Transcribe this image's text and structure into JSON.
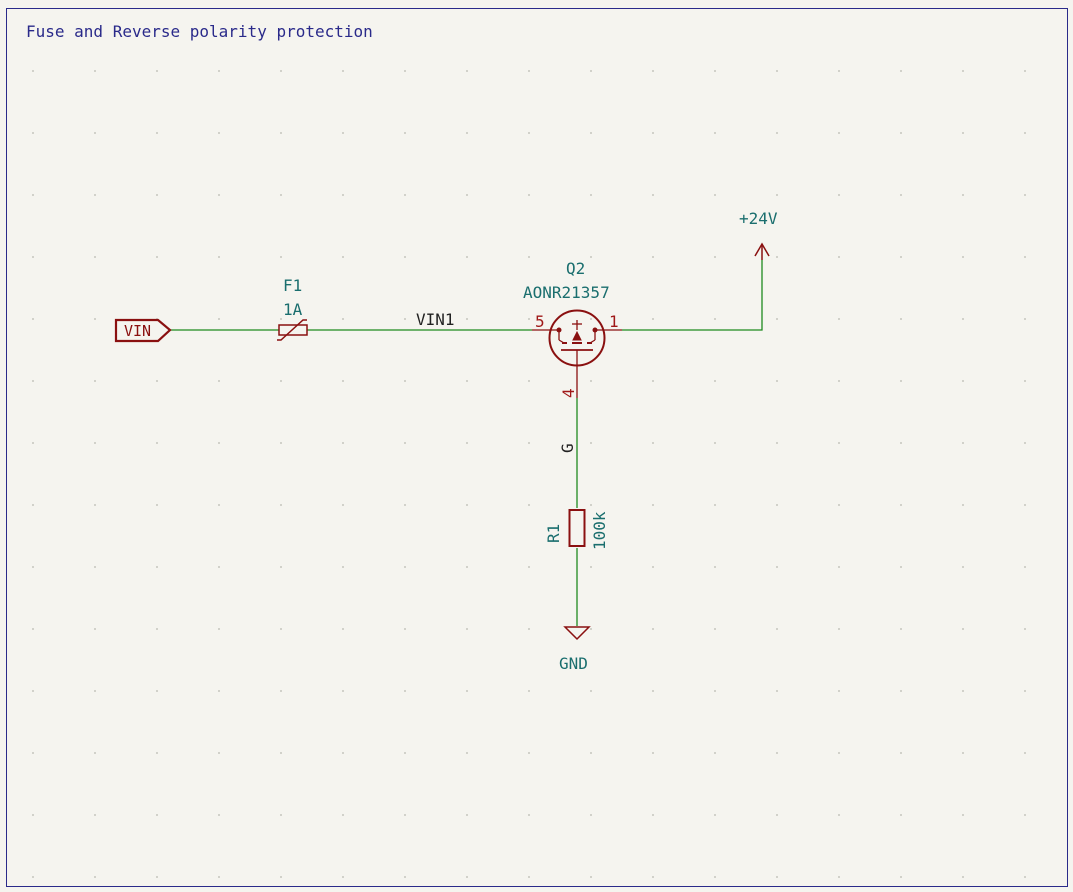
{
  "sheet": {
    "title": "Fuse and Reverse polarity protection"
  },
  "colors": {
    "background": "#f5f4ef",
    "border": "#2a2a8a",
    "wire": "#1e8a1e",
    "symbol": "#8a1010",
    "field": "#1a6e6e",
    "net_label": "#222222",
    "pin_number": "#a01818",
    "grid_dot": "#b8b8b0"
  },
  "components": {
    "vin_port": {
      "label": "VIN"
    },
    "fuse": {
      "ref": "F1",
      "value": "1A"
    },
    "net_vin1": {
      "label": "VIN1"
    },
    "mosfet": {
      "ref": "Q2",
      "value": "AONR21357",
      "pin_left": "5",
      "pin_right": "1",
      "pin_bottom": "4",
      "gate_label": "G"
    },
    "power_24v": {
      "label": "+24V"
    },
    "resistor": {
      "ref": "R1",
      "value": "100k"
    },
    "ground": {
      "label": "GND"
    }
  }
}
